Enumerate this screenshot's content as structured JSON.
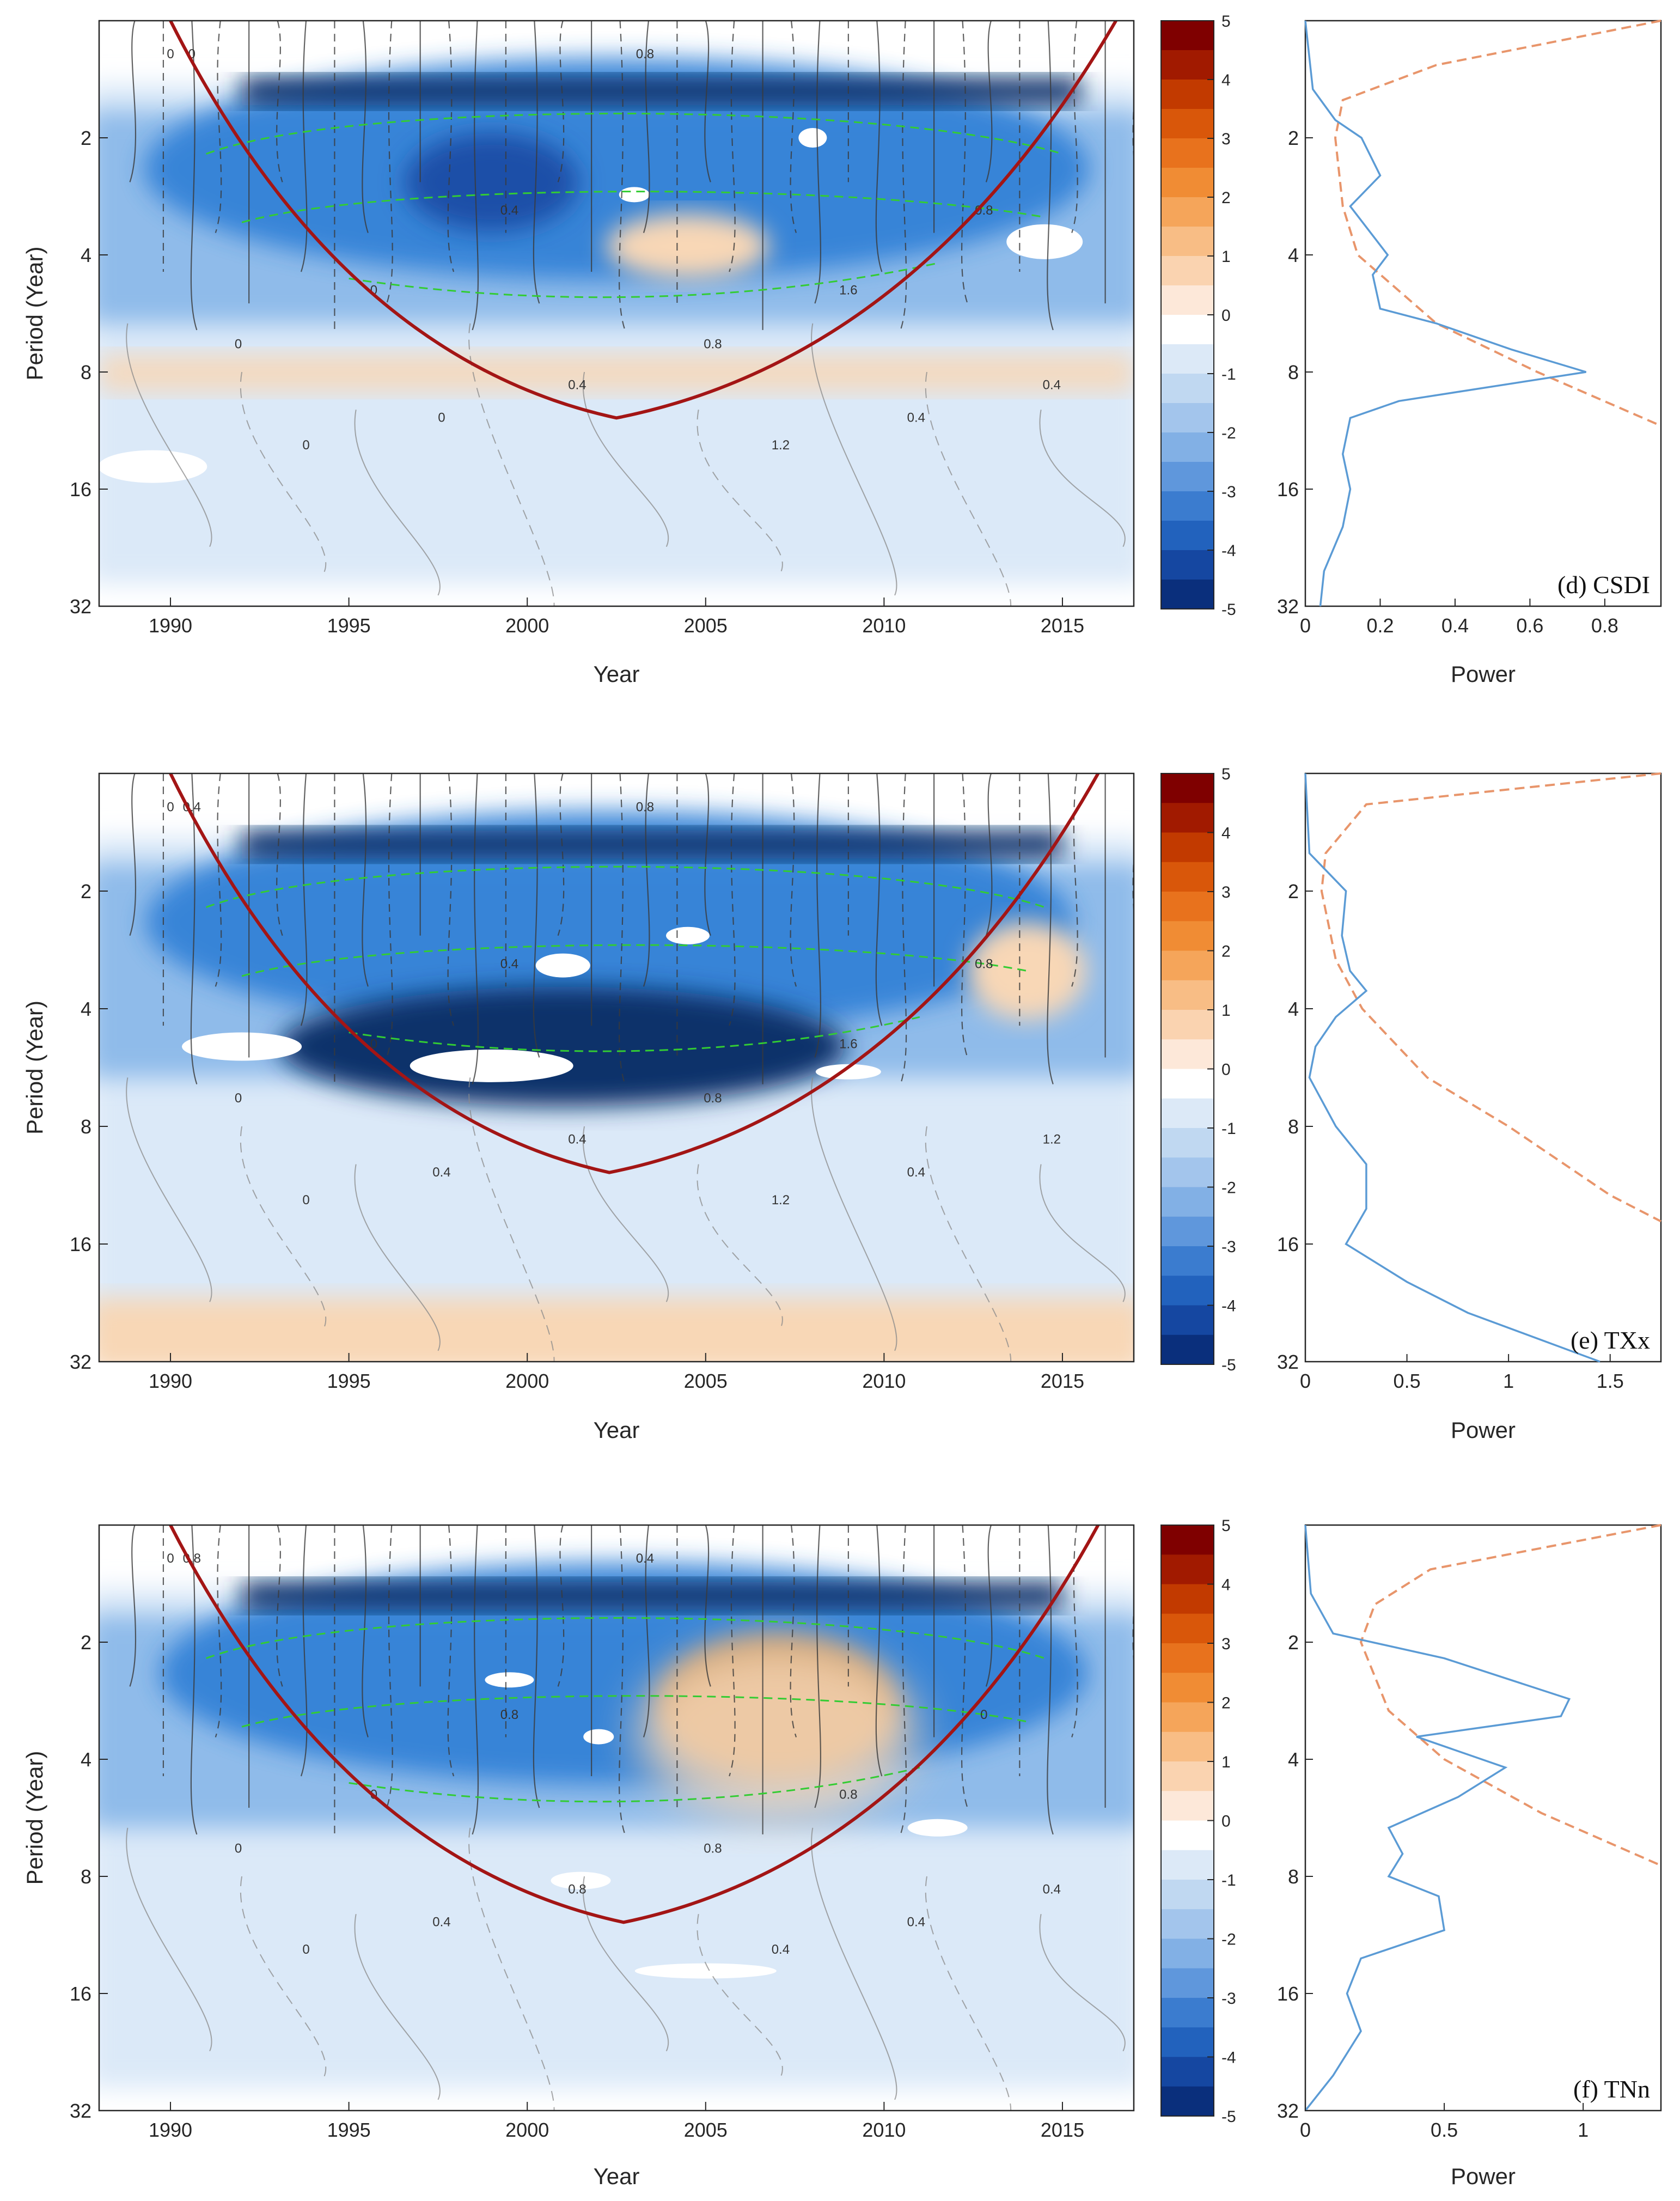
{
  "colors": {
    "blue_deep": "#08306b",
    "blue_mid": "#2f7fd6",
    "blue_light": "#dbe9f8",
    "orange_light": "#f8d7b6",
    "orange_mid": "#f29a3a",
    "red_deep": "#7f0000",
    "coi": "#a31515",
    "significance": "#33cc33",
    "global_power": "#5b9bd5",
    "significance_line": "#e8956b"
  },
  "colorbar": {
    "ticks": [
      "5",
      "4",
      "3",
      "2",
      "1",
      "0",
      "-1",
      "-2",
      "-3",
      "-4",
      "-5"
    ],
    "min": -5,
    "max": 5
  },
  "chart_data": [
    {
      "type": "heatmap",
      "panel": "d",
      "index_name": "CSDI",
      "panel_label": "(d)  CSDI",
      "xlabel": "Year",
      "ylabel": "Period (Year)",
      "xlim": [
        1988,
        2017
      ],
      "ylim_period": [
        1,
        32
      ],
      "x_ticks": [
        "1990",
        "1995",
        "2000",
        "2005",
        "2010",
        "2015"
      ],
      "y_ticks": [
        "2",
        "4",
        "8",
        "16",
        "32"
      ],
      "cone_of_influence": {
        "left_year": 1990.0,
        "min_year": 2002.5,
        "min_period": 10.5,
        "right_year": 2016.5
      },
      "contour_labels": [
        "0",
        "0",
        "0",
        "0",
        "0",
        "0.4",
        "0.4",
        "0.8",
        "0.8",
        "1.2",
        "1.6",
        "0.4",
        "0.8",
        "0.4",
        "0"
      ],
      "global_wavelet": {
        "xlabel": "Power",
        "x_ticks": [
          "0",
          "0.2",
          "0.4",
          "0.6",
          "0.8"
        ],
        "xlim": [
          0,
          0.95
        ],
        "power": [
          [
            1.0,
            0.0
          ],
          [
            1.5,
            0.02
          ],
          [
            1.8,
            0.08
          ],
          [
            2.0,
            0.15
          ],
          [
            2.5,
            0.2
          ],
          [
            3.0,
            0.12
          ],
          [
            4.0,
            0.22
          ],
          [
            4.5,
            0.18
          ],
          [
            5.5,
            0.2
          ],
          [
            6.0,
            0.35
          ],
          [
            7.0,
            0.55
          ],
          [
            8.0,
            0.75
          ],
          [
            9.5,
            0.25
          ],
          [
            10.5,
            0.12
          ],
          [
            13.0,
            0.1
          ],
          [
            16.0,
            0.12
          ],
          [
            20.0,
            0.1
          ],
          [
            26.0,
            0.05
          ],
          [
            32.0,
            0.04
          ]
        ],
        "significance": [
          [
            1.0,
            0.95
          ],
          [
            1.3,
            0.35
          ],
          [
            1.6,
            0.1
          ],
          [
            2.0,
            0.08
          ],
          [
            3.0,
            0.1
          ],
          [
            4.0,
            0.14
          ],
          [
            6.0,
            0.35
          ],
          [
            8.0,
            0.62
          ],
          [
            11.0,
            0.95
          ]
        ]
      }
    },
    {
      "type": "heatmap",
      "panel": "e",
      "index_name": "TXx",
      "panel_label": "(e) TXx",
      "xlabel": "Year",
      "ylabel": "Period (Year)",
      "xlim": [
        1988,
        2017
      ],
      "ylim_period": [
        1,
        32
      ],
      "x_ticks": [
        "1990",
        "1995",
        "2000",
        "2005",
        "2010",
        "2015"
      ],
      "y_ticks": [
        "2",
        "4",
        "8",
        "16",
        "32"
      ],
      "cone_of_influence": {
        "left_year": 1990.0,
        "min_year": 2002.3,
        "min_period": 10.5,
        "right_year": 2016.0
      },
      "contour_labels": [
        "0",
        "0",
        "0",
        "0",
        "0.4",
        "0.4",
        "0.4",
        "0.8",
        "0.8",
        "1.2",
        "1.6",
        "0.4",
        "0.8",
        "1.2",
        "0.4"
      ],
      "global_wavelet": {
        "xlabel": "Power",
        "x_ticks": [
          "0",
          "0.5",
          "1",
          "1.5"
        ],
        "xlim": [
          0,
          1.75
        ],
        "power": [
          [
            1.0,
            0.0
          ],
          [
            1.6,
            0.02
          ],
          [
            2.0,
            0.2
          ],
          [
            2.6,
            0.18
          ],
          [
            3.2,
            0.22
          ],
          [
            3.6,
            0.3
          ],
          [
            4.2,
            0.15
          ],
          [
            5.0,
            0.05
          ],
          [
            6.0,
            0.02
          ],
          [
            8.0,
            0.15
          ],
          [
            10.0,
            0.3
          ],
          [
            13.0,
            0.3
          ],
          [
            16.0,
            0.2
          ],
          [
            20.0,
            0.5
          ],
          [
            24.0,
            0.8
          ],
          [
            32.0,
            1.45
          ]
        ],
        "significance": [
          [
            1.0,
            1.75
          ],
          [
            1.2,
            0.3
          ],
          [
            1.6,
            0.1
          ],
          [
            2.0,
            0.08
          ],
          [
            3.0,
            0.15
          ],
          [
            4.0,
            0.28
          ],
          [
            6.0,
            0.6
          ],
          [
            8.0,
            1.0
          ],
          [
            12.0,
            1.5
          ],
          [
            14.0,
            1.75
          ]
        ]
      }
    },
    {
      "type": "heatmap",
      "panel": "f",
      "index_name": "TNn",
      "panel_label": "(f)  TNn",
      "xlabel": "Year",
      "ylabel": "Period (Year)",
      "xlim": [
        1988,
        2017
      ],
      "ylim_period": [
        1,
        32
      ],
      "x_ticks": [
        "1990",
        "1995",
        "2000",
        "2005",
        "2010",
        "2015"
      ],
      "y_ticks": [
        "2",
        "4",
        "8",
        "16",
        "32"
      ],
      "cone_of_influence": {
        "left_year": 1990.0,
        "min_year": 2002.7,
        "min_period": 10.5,
        "right_year": 2016.0
      },
      "contour_labels": [
        "0",
        "0",
        "0",
        "0",
        "0.4",
        "0.8",
        "0.8",
        "0.4",
        "0.8",
        "0.4",
        "0.8",
        "0.4",
        "0",
        "0.4",
        "0.8"
      ],
      "global_wavelet": {
        "xlabel": "Power",
        "x_ticks": [
          "0",
          "0.5",
          "1"
        ],
        "xlim": [
          0,
          1.28
        ],
        "power": [
          [
            1.0,
            0.0
          ],
          [
            1.5,
            0.02
          ],
          [
            1.9,
            0.1
          ],
          [
            2.2,
            0.5
          ],
          [
            2.8,
            0.95
          ],
          [
            3.1,
            0.92
          ],
          [
            3.5,
            0.4
          ],
          [
            4.2,
            0.72
          ],
          [
            5.0,
            0.55
          ],
          [
            6.0,
            0.3
          ],
          [
            7.0,
            0.35
          ],
          [
            8.0,
            0.3
          ],
          [
            9.0,
            0.48
          ],
          [
            11.0,
            0.5
          ],
          [
            13.0,
            0.2
          ],
          [
            16.0,
            0.15
          ],
          [
            20.0,
            0.2
          ],
          [
            26.0,
            0.1
          ],
          [
            32.0,
            0.0
          ]
        ],
        "significance": [
          [
            1.0,
            1.28
          ],
          [
            1.3,
            0.45
          ],
          [
            1.6,
            0.25
          ],
          [
            2.0,
            0.2
          ],
          [
            3.0,
            0.3
          ],
          [
            4.0,
            0.5
          ],
          [
            5.5,
            0.85
          ],
          [
            7.5,
            1.28
          ]
        ]
      }
    }
  ]
}
